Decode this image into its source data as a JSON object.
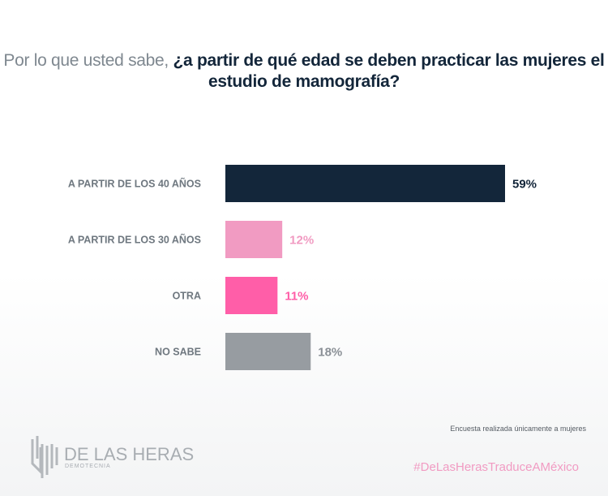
{
  "title": {
    "light": "Por lo que usted sabe, ",
    "bold": "¿a partir de qué edad se deben practicar las mujeres el estudio de mamografía?"
  },
  "chart_data": {
    "type": "bar",
    "orientation": "horizontal",
    "title": "Por lo que usted sabe, ¿a partir de qué edad se deben practicar las mujeres el estudio de mamografía?",
    "categories": [
      "A PARTIR DE LOS 40 AÑOS",
      "A PARTIR DE LOS 30 AÑOS",
      "OTRA",
      "NO SABE"
    ],
    "values": [
      59,
      12,
      11,
      18
    ],
    "labels": [
      "59%",
      "12%",
      "11%",
      "18%"
    ],
    "colors": [
      "#13263a",
      "#f19bc2",
      "#ff5ea8",
      "#979ca1"
    ],
    "label_colors": [
      "#13263a",
      "#f19bc2",
      "#ff5ea8",
      "#8a9096"
    ],
    "xlim": [
      0,
      100
    ],
    "grid": false
  },
  "footer": {
    "note": "Encuesta realizada únicamente a mujeres",
    "hashtag": "#DeLasHerasTraduceAMéxico",
    "logo_name": "DE LAS HERAS",
    "logo_sub": "DEMOTECNIA"
  }
}
